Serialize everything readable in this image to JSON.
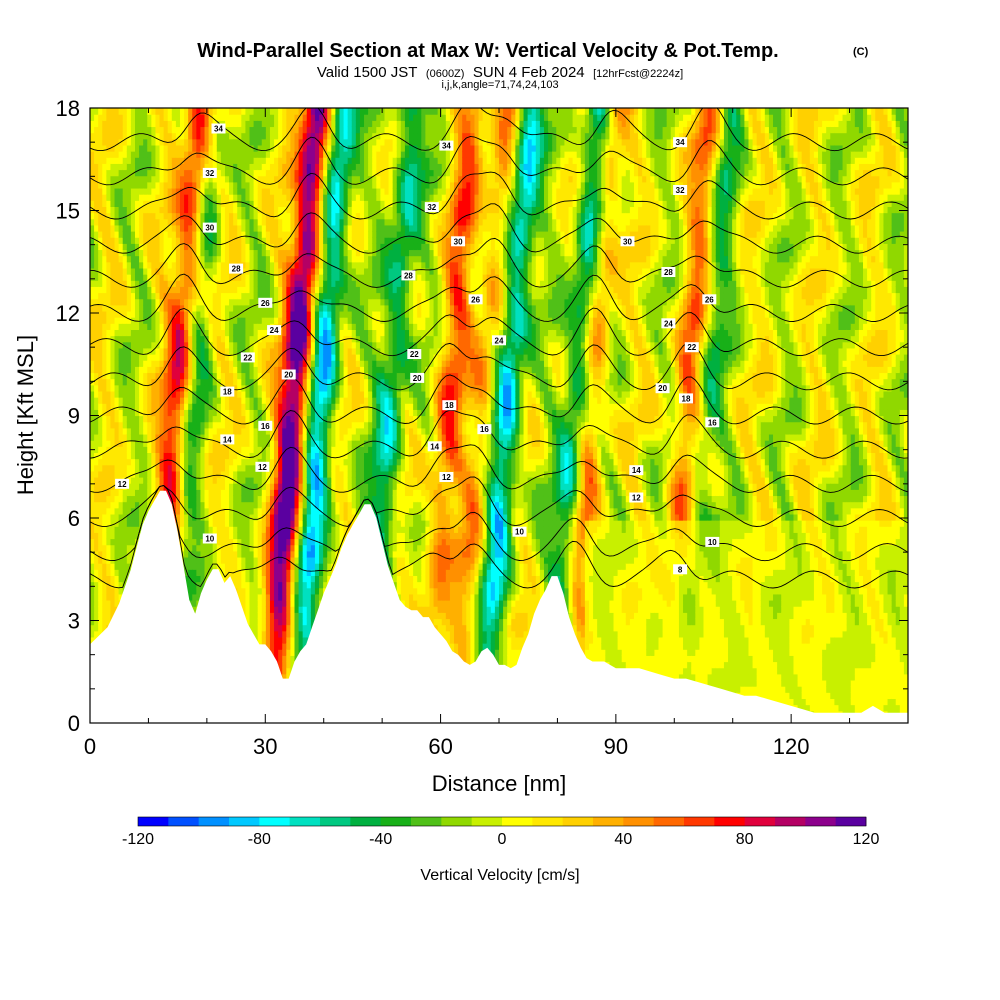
{
  "header": {
    "title": "Wind-Parallel Section at Max W: Vertical Velocity & Pot.Temp.",
    "title_mark": "(C)",
    "valid_prefix": "Valid 1500 JST",
    "valid_zulu": "(0600Z)",
    "valid_date": "SUN 4 Feb 2024",
    "forecast": "[12hrFcst@2224z]",
    "params": "i,j,k,angle=71,74,24,103"
  },
  "chart_data": {
    "type": "heatmap",
    "title": "Wind-Parallel Section at Max W: Vertical Velocity & Pot.Temp.",
    "xlabel": "Distance [nm]",
    "ylabel": "Height [Kft MSL]",
    "xlim": [
      0,
      140
    ],
    "ylim": [
      0,
      18
    ],
    "x_ticks": [
      0,
      30,
      60,
      90,
      120
    ],
    "y_ticks": [
      0,
      3,
      6,
      9,
      12,
      15,
      18
    ],
    "grid": false,
    "colorbar": {
      "label": "Vertical Velocity [cm/s]",
      "min": -120,
      "max": 120,
      "step": 10,
      "ticks": [
        -120,
        -80,
        -40,
        0,
        40,
        80,
        120
      ],
      "colors": [
        "#0000ff",
        "#0050ff",
        "#0090ff",
        "#00c8ff",
        "#00ffff",
        "#00e0c0",
        "#00c880",
        "#00b040",
        "#18b018",
        "#50c018",
        "#90d800",
        "#c8f000",
        "#ffff00",
        "#ffe800",
        "#ffd000",
        "#ffb000",
        "#ff9000",
        "#ff6800",
        "#ff3800",
        "#ff0000",
        "#e0003c",
        "#b40064",
        "#8c008c",
        "#5a00a0"
      ]
    },
    "updraft_columns": [
      {
        "x": 13.5,
        "value": 80
      },
      {
        "x": 33.5,
        "value": 120
      },
      {
        "x": 60,
        "value": 50
      },
      {
        "x": 66,
        "value": 40
      },
      {
        "x": 84,
        "value": 60
      },
      {
        "x": 101,
        "value": 50
      }
    ],
    "downdraft_columns": [
      {
        "x": 16,
        "value": -40
      },
      {
        "x": 38,
        "value": -80
      },
      {
        "x": 50,
        "value": -60
      },
      {
        "x": 70,
        "value": -80
      },
      {
        "x": 82,
        "value": -80
      },
      {
        "x": 104,
        "value": -40
      }
    ],
    "terrain": [
      [
        0,
        2.3
      ],
      [
        3,
        2.8
      ],
      [
        5,
        3.5
      ],
      [
        7,
        4.5
      ],
      [
        9,
        5.8
      ],
      [
        10,
        6.2
      ],
      [
        11,
        6.5
      ],
      [
        12,
        6.8
      ],
      [
        13,
        6.8
      ],
      [
        14,
        6.4
      ],
      [
        15,
        5.6
      ],
      [
        16,
        4.6
      ],
      [
        17,
        3.6
      ],
      [
        18,
        3.2
      ],
      [
        19,
        3.8
      ],
      [
        20,
        4.2
      ],
      [
        21,
        4.5
      ],
      [
        22,
        4.5
      ],
      [
        23,
        4.1
      ],
      [
        24,
        4.3
      ],
      [
        25,
        3.9
      ],
      [
        26,
        3.4
      ],
      [
        27,
        2.9
      ],
      [
        28,
        2.6
      ],
      [
        29,
        2.3
      ],
      [
        30,
        2.3
      ],
      [
        31,
        2.1
      ],
      [
        32,
        1.8
      ],
      [
        33,
        1.3
      ],
      [
        34,
        1.3
      ],
      [
        35,
        1.8
      ],
      [
        36,
        2.1
      ],
      [
        37,
        2.3
      ],
      [
        38,
        2.8
      ],
      [
        39,
        3.3
      ],
      [
        40,
        3.8
      ],
      [
        41,
        4.2
      ],
      [
        42,
        4.6
      ],
      [
        43,
        5.1
      ],
      [
        44,
        5.5
      ],
      [
        45,
        5.8
      ],
      [
        46,
        6.1
      ],
      [
        47,
        6.4
      ],
      [
        48,
        6.4
      ],
      [
        49,
        6.0
      ],
      [
        50,
        5.3
      ],
      [
        51,
        4.6
      ],
      [
        52,
        4.1
      ],
      [
        53,
        3.6
      ],
      [
        54,
        3.4
      ],
      [
        55,
        3.3
      ],
      [
        56,
        3.3
      ],
      [
        57,
        3.1
      ],
      [
        58,
        3.1
      ],
      [
        59,
        2.8
      ],
      [
        60,
        2.6
      ],
      [
        61,
        2.4
      ],
      [
        62,
        2.1
      ],
      [
        63,
        2.0
      ],
      [
        64,
        1.8
      ],
      [
        65,
        1.7
      ],
      [
        66,
        1.8
      ],
      [
        67,
        2.1
      ],
      [
        68,
        2.2
      ],
      [
        69,
        2.0
      ],
      [
        70,
        1.7
      ],
      [
        71,
        1.7
      ],
      [
        72,
        1.6
      ],
      [
        73,
        1.7
      ],
      [
        74,
        2.2
      ],
      [
        75,
        2.6
      ],
      [
        76,
        3.2
      ],
      [
        77,
        3.6
      ],
      [
        78,
        3.9
      ],
      [
        79,
        4.3
      ],
      [
        80,
        4.3
      ],
      [
        81,
        3.8
      ],
      [
        82,
        3.1
      ],
      [
        83,
        2.6
      ],
      [
        84,
        2.2
      ],
      [
        85,
        1.9
      ],
      [
        86,
        1.8
      ],
      [
        88,
        1.8
      ],
      [
        90,
        1.6
      ],
      [
        92,
        1.6
      ],
      [
        94,
        1.6
      ],
      [
        96,
        1.5
      ],
      [
        98,
        1.4
      ],
      [
        100,
        1.3
      ],
      [
        102,
        1.3
      ],
      [
        104,
        1.2
      ],
      [
        106,
        1.1
      ],
      [
        108,
        1.0
      ],
      [
        110,
        0.9
      ],
      [
        112,
        0.8
      ],
      [
        114,
        0.8
      ],
      [
        116,
        0.7
      ],
      [
        118,
        0.6
      ],
      [
        120,
        0.5
      ],
      [
        122,
        0.4
      ],
      [
        124,
        0.3
      ],
      [
        126,
        0.3
      ],
      [
        128,
        0.3
      ],
      [
        130,
        0.3
      ],
      [
        132,
        0.3
      ],
      [
        134,
        0.5
      ],
      [
        136,
        0.3
      ],
      [
        138,
        0.3
      ],
      [
        140,
        0.3
      ]
    ],
    "isentrope_labels": [
      {
        "text": "34",
        "x": 22,
        "y": 17.4
      },
      {
        "text": "34",
        "x": 61,
        "y": 16.9
      },
      {
        "text": "34",
        "x": 101,
        "y": 17.0
      },
      {
        "text": "32",
        "x": 20.5,
        "y": 16.1
      },
      {
        "text": "32",
        "x": 58.5,
        "y": 15.1
      },
      {
        "text": "32",
        "x": 101,
        "y": 15.6
      },
      {
        "text": "30",
        "x": 20.5,
        "y": 14.5
      },
      {
        "text": "30",
        "x": 63,
        "y": 14.1
      },
      {
        "text": "30",
        "x": 92,
        "y": 14.1
      },
      {
        "text": "28",
        "x": 25,
        "y": 13.3
      },
      {
        "text": "28",
        "x": 54.5,
        "y": 13.1
      },
      {
        "text": "28",
        "x": 99,
        "y": 13.2
      },
      {
        "text": "26",
        "x": 30,
        "y": 12.3
      },
      {
        "text": "26",
        "x": 66,
        "y": 12.4
      },
      {
        "text": "26",
        "x": 106,
        "y": 12.4
      },
      {
        "text": "24",
        "x": 31.5,
        "y": 11.5
      },
      {
        "text": "24",
        "x": 70,
        "y": 11.2
      },
      {
        "text": "24",
        "x": 99,
        "y": 11.7
      },
      {
        "text": "22",
        "x": 27,
        "y": 10.7
      },
      {
        "text": "22",
        "x": 55.5,
        "y": 10.8
      },
      {
        "text": "22",
        "x": 103,
        "y": 11.0
      },
      {
        "text": "20",
        "x": 34,
        "y": 10.2
      },
      {
        "text": "20",
        "x": 56,
        "y": 10.1
      },
      {
        "text": "20",
        "x": 98,
        "y": 9.8
      },
      {
        "text": "18",
        "x": 23.5,
        "y": 9.7
      },
      {
        "text": "18",
        "x": 61.5,
        "y": 9.3
      },
      {
        "text": "18",
        "x": 102,
        "y": 9.5
      },
      {
        "text": "16",
        "x": 30,
        "y": 8.7
      },
      {
        "text": "16",
        "x": 67.5,
        "y": 8.6
      },
      {
        "text": "16",
        "x": 106.5,
        "y": 8.8
      },
      {
        "text": "14",
        "x": 23.5,
        "y": 8.3
      },
      {
        "text": "14",
        "x": 59,
        "y": 8.1
      },
      {
        "text": "14",
        "x": 93.5,
        "y": 7.4
      },
      {
        "text": "12",
        "x": 5.5,
        "y": 7.0
      },
      {
        "text": "12",
        "x": 29.5,
        "y": 7.5
      },
      {
        "text": "12",
        "x": 61,
        "y": 7.2
      },
      {
        "text": "12",
        "x": 93.5,
        "y": 6.6
      },
      {
        "text": "10",
        "x": 20.5,
        "y": 5.4
      },
      {
        "text": "10",
        "x": 73.5,
        "y": 5.6
      },
      {
        "text": "10",
        "x": 106.5,
        "y": 5.3
      },
      {
        "text": "8",
        "x": 101,
        "y": 4.5
      }
    ]
  }
}
